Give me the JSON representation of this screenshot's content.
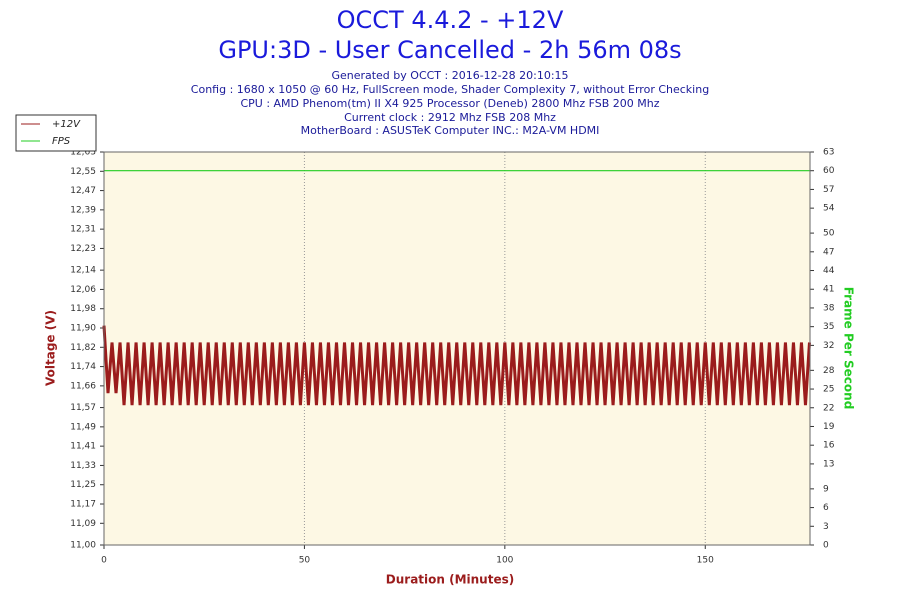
{
  "chart_data": {
    "type": "line",
    "title": "OCCT 4.4.2 - +12V",
    "subtitle": "GPU:3D - User Cancelled - 2h 56m 08s",
    "info": [
      "Generated by OCCT : 2016-12-28 20:10:15",
      "Config : 1680 x 1050 @ 60 Hz, FullScreen mode, Shader Complexity 7, without Error Checking",
      "CPU : AMD Phenom(tm) II X4 925 Processor (Deneb) 2800 Mhz FSB 200 Mhz",
      "Current clock : 2912 Mhz FSB 208 Mhz",
      "MotherBoard : ASUSTeK Computer INC.: M2A-VM HDMI"
    ],
    "xlabel": "Duration (Minutes)",
    "ylabel": "Voltage (V)",
    "y2label": "Frame Per Second",
    "xlim": [
      0,
      176.13
    ],
    "xticks": [
      0,
      50,
      100,
      150
    ],
    "ylim": [
      11.0,
      12.63
    ],
    "yticks": [
      {
        "value": 11.0,
        "label": "11,00"
      },
      {
        "value": 11.09,
        "label": "11,09"
      },
      {
        "value": 11.17,
        "label": "11,17"
      },
      {
        "value": 11.25,
        "label": "11,25"
      },
      {
        "value": 11.33,
        "label": "11,33"
      },
      {
        "value": 11.41,
        "label": "11,41"
      },
      {
        "value": 11.49,
        "label": "11,49"
      },
      {
        "value": 11.57,
        "label": "11,57"
      },
      {
        "value": 11.66,
        "label": "11,66"
      },
      {
        "value": 11.74,
        "label": "11,74"
      },
      {
        "value": 11.82,
        "label": "11,82"
      },
      {
        "value": 11.9,
        "label": "11,90"
      },
      {
        "value": 11.98,
        "label": "11,98"
      },
      {
        "value": 12.06,
        "label": "12,06"
      },
      {
        "value": 12.14,
        "label": "12,14"
      },
      {
        "value": 12.23,
        "label": "12,23"
      },
      {
        "value": 12.31,
        "label": "12,31"
      },
      {
        "value": 12.39,
        "label": "12,39"
      },
      {
        "value": 12.47,
        "label": "12,47"
      },
      {
        "value": 12.55,
        "label": "12,55"
      },
      {
        "value": 12.63,
        "label": "12,63"
      }
    ],
    "y2lim": [
      0,
      63
    ],
    "y2ticks": [
      0,
      3,
      6,
      9,
      13,
      16,
      19,
      22,
      25,
      28,
      32,
      35,
      38,
      41,
      44,
      47,
      50,
      54,
      57,
      60,
      63
    ],
    "grid": true,
    "legend": "top-left",
    "series": [
      {
        "name": "+12V",
        "color": "#9b1c1c",
        "x": [
          0,
          1,
          2,
          3,
          4,
          5,
          6,
          7,
          8,
          9,
          10,
          11,
          12,
          13,
          14,
          15,
          16,
          17,
          18,
          19,
          20,
          21,
          22,
          23,
          24,
          25,
          26,
          27,
          28,
          29,
          30,
          31,
          32,
          33,
          34,
          35,
          36,
          37,
          38,
          39,
          40,
          41,
          42,
          43,
          44,
          45,
          46,
          47,
          48,
          49,
          50,
          51,
          52,
          53,
          54,
          55,
          56,
          57,
          58,
          59,
          60,
          61,
          62,
          63,
          64,
          65,
          66,
          67,
          68,
          69,
          70,
          71,
          72,
          73,
          74,
          75,
          76,
          77,
          78,
          79,
          80,
          81,
          82,
          83,
          84,
          85,
          86,
          87,
          88,
          89,
          90,
          91,
          92,
          93,
          94,
          95,
          96,
          97,
          98,
          99,
          100,
          101,
          102,
          103,
          104,
          105,
          106,
          107,
          108,
          109,
          110,
          111,
          112,
          113,
          114,
          115,
          116,
          117,
          118,
          119,
          120,
          121,
          122,
          123,
          124,
          125,
          126,
          127,
          128,
          129,
          130,
          131,
          132,
          133,
          134,
          135,
          136,
          137,
          138,
          139,
          140,
          141,
          142,
          143,
          144,
          145,
          146,
          147,
          148,
          149,
          150,
          151,
          152,
          153,
          154,
          155,
          156,
          157,
          158,
          159,
          160,
          161,
          162,
          163,
          164,
          165,
          166,
          167,
          168,
          169,
          170,
          171,
          172,
          173,
          174,
          175,
          176
        ],
        "values": [
          11.91,
          11.63,
          11.84,
          11.63,
          11.84,
          11.58,
          11.84,
          11.58,
          11.84,
          11.58,
          11.84,
          11.58,
          11.84,
          11.58,
          11.84,
          11.58,
          11.84,
          11.58,
          11.84,
          11.58,
          11.84,
          11.58,
          11.84,
          11.58,
          11.84,
          11.58,
          11.84,
          11.58,
          11.84,
          11.58,
          11.84,
          11.58,
          11.84,
          11.58,
          11.84,
          11.58,
          11.84,
          11.58,
          11.84,
          11.58,
          11.84,
          11.58,
          11.84,
          11.58,
          11.84,
          11.58,
          11.84,
          11.58,
          11.84,
          11.58,
          11.84,
          11.58,
          11.84,
          11.58,
          11.84,
          11.58,
          11.84,
          11.58,
          11.84,
          11.58,
          11.84,
          11.58,
          11.84,
          11.58,
          11.84,
          11.58,
          11.84,
          11.58,
          11.84,
          11.58,
          11.84,
          11.58,
          11.84,
          11.58,
          11.84,
          11.58,
          11.84,
          11.58,
          11.84,
          11.58,
          11.84,
          11.58,
          11.84,
          11.58,
          11.84,
          11.58,
          11.84,
          11.58,
          11.84,
          11.58,
          11.84,
          11.58,
          11.84,
          11.58,
          11.84,
          11.58,
          11.84,
          11.58,
          11.84,
          11.58,
          11.84,
          11.58,
          11.84,
          11.58,
          11.84,
          11.58,
          11.84,
          11.58,
          11.84,
          11.58,
          11.84,
          11.58,
          11.84,
          11.58,
          11.84,
          11.58,
          11.84,
          11.58,
          11.84,
          11.58,
          11.84,
          11.58,
          11.84,
          11.58,
          11.84,
          11.58,
          11.84,
          11.58,
          11.84,
          11.58,
          11.84,
          11.58,
          11.84,
          11.58,
          11.84,
          11.58,
          11.84,
          11.58,
          11.84,
          11.58,
          11.84,
          11.58,
          11.84,
          11.58,
          11.84,
          11.58,
          11.84,
          11.58,
          11.84,
          11.58,
          11.84,
          11.58,
          11.84,
          11.58,
          11.84,
          11.58,
          11.84,
          11.58,
          11.84,
          11.58,
          11.84,
          11.58,
          11.84,
          11.58,
          11.84,
          11.58,
          11.84,
          11.58,
          11.84,
          11.58,
          11.84,
          11.58,
          11.84,
          11.58,
          11.84,
          11.58,
          11.84
        ]
      },
      {
        "name": "FPS",
        "color": "#22cc22",
        "axis": "y2",
        "x": [
          0,
          176
        ],
        "values": [
          60,
          60
        ]
      }
    ]
  }
}
